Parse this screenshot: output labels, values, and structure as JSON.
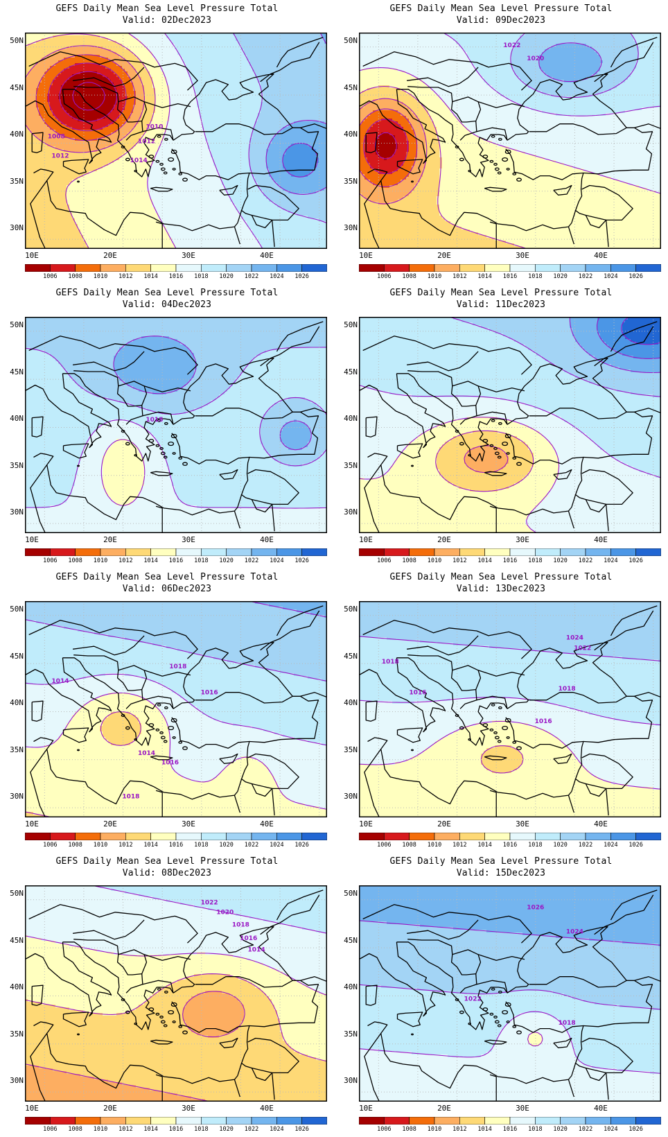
{
  "panels": [
    {
      "id": "p1",
      "title": "GEFS Daily Mean Sea Level Pressure Total",
      "valid": "Valid: 02Dec2023",
      "contour_labels": [
        "1010",
        "1012",
        "1014",
        "1008",
        "1012"
      ],
      "field": {
        "base": 1017,
        "gradient": [
          0.18,
          0.12
        ],
        "centers": [
          [
            16,
            45,
            -13,
            7,
            5
          ],
          [
            42,
            38,
            5,
            5,
            4
          ]
        ]
      }
    },
    {
      "id": "p2",
      "title": "GEFS Daily Mean Sea Level Pressure Total",
      "valid": "Valid: 09Dec2023",
      "contour_labels": [
        "1022",
        "1020"
      ],
      "field": {
        "base": 1016,
        "gradient": [
          0.05,
          0.2
        ],
        "centers": [
          [
            11,
            40,
            -10,
            5,
            5
          ],
          [
            34,
            48,
            5,
            8,
            4
          ]
        ]
      }
    },
    {
      "id": "p3",
      "title": "GEFS Daily Mean Sea Level Pressure Total",
      "valid": "Valid: 04Dec2023",
      "contour_labels": [
        "1018"
      ],
      "field": {
        "base": 1019,
        "gradient": [
          0.0,
          0.12
        ],
        "centers": [
          [
            24,
            46,
            4,
            7,
            4
          ],
          [
            20,
            36,
            -4,
            4,
            5
          ],
          [
            42,
            39,
            4,
            4,
            3
          ]
        ]
      }
    },
    {
      "id": "p4",
      "title": "GEFS Daily Mean Sea Level Pressure Total",
      "valid": "Valid: 11Dec2023",
      "contour_labels": [],
      "field": {
        "base": 1018,
        "gradient": [
          0.05,
          0.2
        ],
        "centers": [
          [
            24,
            37,
            -6,
            8,
            4
          ],
          [
            44,
            50,
            6,
            8,
            4
          ]
        ]
      }
    },
    {
      "id": "p5",
      "title": "GEFS Daily Mean Sea Level Pressure Total",
      "valid": "Valid: 06Dec2023",
      "contour_labels": [
        "1014",
        "1018",
        "1016",
        "1014",
        "1016",
        "1018"
      ],
      "field": {
        "base": 1018,
        "gradient": [
          0.05,
          0.3
        ],
        "centers": [
          [
            20,
            39,
            -4,
            6,
            4
          ],
          [
            36,
            33,
            -2,
            3,
            3
          ]
        ]
      }
    },
    {
      "id": "p6",
      "title": "GEFS Daily Mean Sea Level Pressure Total",
      "valid": "Valid: 13Dec2023",
      "contour_labels": [
        "1024",
        "1022",
        "1018",
        "1018",
        "1016",
        "1016"
      ],
      "field": {
        "base": 1018,
        "gradient": [
          0.02,
          0.3
        ],
        "centers": [
          [
            26,
            36,
            -3,
            8,
            4
          ]
        ]
      }
    },
    {
      "id": "p7",
      "title": "GEFS Daily Mean Sea Level Pressure Total",
      "valid": "Valid: 08Dec2023",
      "contour_labels": [
        "1022",
        "1020",
        "1018",
        "1016",
        "1014"
      ],
      "field": {
        "base": 1015,
        "gradient": [
          0.05,
          0.3
        ],
        "centers": [
          [
            32,
            39,
            -4,
            7,
            4
          ]
        ]
      }
    },
    {
      "id": "p8",
      "title": "GEFS Daily Mean Sea Level Pressure Total",
      "valid": "Valid: 15Dec2023",
      "contour_labels": [
        "1026",
        "1024",
        "1022",
        "1018"
      ],
      "field": {
        "base": 1020,
        "gradient": [
          0.02,
          0.3
        ],
        "centers": [
          [
            30,
            36,
            -3,
            4,
            3
          ]
        ]
      }
    }
  ],
  "lat_labels": [
    "50N",
    "45N",
    "40N",
    "35N",
    "30N"
  ],
  "lon_labels": [
    "10E",
    "20E",
    "30E",
    "40E"
  ],
  "colorbar": {
    "labels": [
      "1006",
      "1008",
      "1010",
      "1012",
      "1014",
      "1016",
      "1018",
      "1020",
      "1022",
      "1024",
      "1026"
    ],
    "colors": [
      "#a50000",
      "#d7191c",
      "#f46d0a",
      "#fdae61",
      "#fed976",
      "#ffffbf",
      "#e6f8fc",
      "#c0ecfb",
      "#a3d4f5",
      "#74b5ef",
      "#4b96e6",
      "#2166d3"
    ]
  },
  "style": {
    "contour_color": "#9a16c4",
    "coast_color": "#000000",
    "grid_color": "#b9b9b9"
  }
}
